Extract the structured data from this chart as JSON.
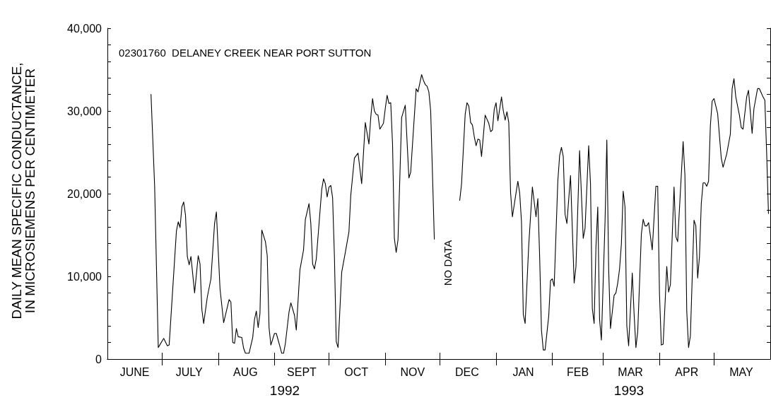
{
  "chart_data": {
    "type": "line",
    "title": "02301760  DELANEY CREEK NEAR PORT SUTTON",
    "ylabel": "DAILY MEAN SPECIFIC CONDUCTANCE,\nIN MICROSIEMENS PER CENTIMETER",
    "xlim": [
      "1992-06-01",
      "1993-06-01"
    ],
    "xticks": [
      {
        "value": "1992-06-16",
        "label": "JUNE"
      },
      {
        "value": "1992-07-01",
        "label": null
      },
      {
        "value": "1992-07-16",
        "label": "JULY"
      },
      {
        "value": "1992-08-01",
        "label": null
      },
      {
        "value": "1992-08-16",
        "label": "AUG"
      },
      {
        "value": "1992-09-01",
        "label": null
      },
      {
        "value": "1992-09-16",
        "label": "SEPT"
      },
      {
        "value": "1992-10-01",
        "label": null
      },
      {
        "value": "1992-10-16",
        "label": "OCT"
      },
      {
        "value": "1992-11-01",
        "label": null
      },
      {
        "value": "1992-11-16",
        "label": "NOV"
      },
      {
        "value": "1992-12-01",
        "label": null
      },
      {
        "value": "1992-12-16",
        "label": "DEC"
      },
      {
        "value": "1993-01-01",
        "label": null
      },
      {
        "value": "1993-01-16",
        "label": "JAN"
      },
      {
        "value": "1993-02-01",
        "label": null
      },
      {
        "value": "1993-02-15",
        "label": "FEB"
      },
      {
        "value": "1993-03-01",
        "label": null
      },
      {
        "value": "1993-03-16",
        "label": "MAR"
      },
      {
        "value": "1993-04-01",
        "label": null
      },
      {
        "value": "1993-04-16",
        "label": "APR"
      },
      {
        "value": "1993-05-01",
        "label": null
      },
      {
        "value": "1993-05-16",
        "label": "MAY"
      }
    ],
    "ylim": [
      0,
      40000
    ],
    "yticks": [
      {
        "value": 0,
        "label": "0"
      },
      {
        "value": 2000,
        "label": null
      },
      {
        "value": 4000,
        "label": null
      },
      {
        "value": 6000,
        "label": null
      },
      {
        "value": 8000,
        "label": null
      },
      {
        "value": 10000,
        "label": "10,000"
      },
      {
        "value": 12000,
        "label": null
      },
      {
        "value": 14000,
        "label": null
      },
      {
        "value": 16000,
        "label": null
      },
      {
        "value": 18000,
        "label": null
      },
      {
        "value": 20000,
        "label": "20,000"
      },
      {
        "value": 22000,
        "label": null
      },
      {
        "value": 24000,
        "label": null
      },
      {
        "value": 26000,
        "label": null
      },
      {
        "value": 28000,
        "label": null
      },
      {
        "value": 30000,
        "label": "30,000"
      },
      {
        "value": 32000,
        "label": null
      },
      {
        "value": 34000,
        "label": null
      },
      {
        "value": 36000,
        "label": null
      },
      {
        "value": 38000,
        "label": null
      },
      {
        "value": 40000,
        "label": "40,000"
      }
    ],
    "annotations": [
      "NO DATA",
      "1992",
      "1993"
    ],
    "series": [
      {
        "color": "#000000",
        "x": [
          "1992-06-25",
          "1992-06-27",
          "1992-06-29",
          "1992-07-02",
          "1992-07-04",
          "1992-07-05",
          "1992-07-09",
          "1992-07-10",
          "1992-07-11",
          "1992-07-12",
          "1992-07-13",
          "1992-07-14",
          "1992-07-15",
          "1992-07-16",
          "1992-07-17",
          "1992-07-19",
          "1992-07-21",
          "1992-07-22",
          "1992-07-23",
          "1992-07-24",
          "1992-07-26",
          "1992-07-28",
          "1992-07-30",
          "1992-07-31",
          "1992-08-02",
          "1992-08-04",
          "1992-08-07",
          "1992-08-08",
          "1992-08-09",
          "1992-08-10",
          "1992-08-11",
          "1992-08-12",
          "1992-08-14",
          "1992-08-15",
          "1992-08-16",
          "1992-08-18",
          "1992-08-20",
          "1992-08-21",
          "1992-08-22",
          "1992-08-23",
          "1992-08-24",
          "1992-08-25",
          "1992-08-27",
          "1992-08-28",
          "1992-08-29",
          "1992-08-30",
          "1992-09-01",
          "1992-09-02",
          "1992-09-04",
          "1992-09-05",
          "1992-09-06",
          "1992-09-07",
          "1992-09-09",
          "1992-09-10",
          "1992-09-12",
          "1992-09-13",
          "1992-09-15",
          "1992-09-17",
          "1992-09-18",
          "1992-09-20",
          "1992-09-21",
          "1992-09-22",
          "1992-09-23",
          "1992-09-24",
          "1992-09-25",
          "1992-09-27",
          "1992-09-28",
          "1992-09-29",
          "1992-09-30",
          "1992-10-01",
          "1992-10-02",
          "1992-10-03",
          "1992-10-04",
          "1992-10-05",
          "1992-10-06",
          "1992-10-08",
          "1992-10-10",
          "1992-10-12",
          "1992-10-13",
          "1992-10-15",
          "1992-10-17",
          "1992-10-19",
          "1992-10-21",
          "1992-10-23",
          "1992-10-24",
          "1992-10-25",
          "1992-10-26",
          "1992-10-27",
          "1992-10-28",
          "1992-10-29",
          "1992-10-31",
          "1992-11-01",
          "1992-11-02",
          "1992-11-03",
          "1992-11-04",
          "1992-11-05",
          "1992-11-06",
          "1992-11-07",
          "1992-11-08",
          "1992-11-10",
          "1992-11-12",
          "1992-11-14",
          "1992-11-15",
          "1992-11-16",
          "1992-11-18",
          "1992-11-19",
          "1992-11-21",
          "1992-11-22",
          "1992-11-23",
          "1992-11-24",
          "1992-11-25",
          "1992-11-26",
          "1992-11-27",
          "1992-11-28",
          "1992-12-05",
          "1992-12-12",
          "1992-12-13",
          "1992-12-15",
          "1992-12-16",
          "1992-12-17",
          "1992-12-18",
          "1992-12-19",
          "1992-12-20",
          "1992-12-21",
          "1992-12-22",
          "1992-12-23",
          "1992-12-24",
          "1992-12-26",
          "1992-12-28",
          "1992-12-29",
          "1992-12-30",
          "1992-12-31",
          "1993-01-01",
          "1993-01-02",
          "1993-01-04",
          "1993-01-05",
          "1993-01-06",
          "1993-01-07",
          "1993-01-08",
          "1993-01-09",
          "1993-01-10",
          "1993-01-12",
          "1993-01-13",
          "1993-01-14",
          "1993-01-15",
          "1993-01-16",
          "1993-01-17",
          "1993-01-19",
          "1993-01-21",
          "1993-01-23",
          "1993-01-24",
          "1993-01-25",
          "1993-01-26",
          "1993-01-27",
          "1993-01-28",
          "1993-01-30",
          "1993-01-31",
          "1993-02-01",
          "1993-02-02",
          "1993-02-04",
          "1993-02-05",
          "1993-02-06",
          "1993-02-07",
          "1993-02-08",
          "1993-02-09",
          "1993-02-11",
          "1993-02-13",
          "1993-02-14",
          "1993-02-16",
          "1993-02-18",
          "1993-02-19",
          "1993-02-21",
          "1993-02-22",
          "1993-02-23",
          "1993-02-24",
          "1993-02-25",
          "1993-02-26",
          "1993-02-27",
          "1993-02-28",
          "1993-03-02",
          "1993-03-03",
          "1993-03-04",
          "1993-03-05",
          "1993-03-07",
          "1993-03-08",
          "1993-03-09",
          "1993-03-10",
          "1993-03-11",
          "1993-03-12",
          "1993-03-13",
          "1993-03-14",
          "1993-03-15",
          "1993-03-17",
          "1993-03-18",
          "1993-03-19",
          "1993-03-20",
          "1993-03-22",
          "1993-03-23",
          "1993-03-24",
          "1993-03-25",
          "1993-03-26",
          "1993-03-28",
          "1993-03-30",
          "1993-03-31",
          "1993-04-01",
          "1993-04-02",
          "1993-04-03",
          "1993-04-05",
          "1993-04-06",
          "1993-04-07",
          "1993-04-09",
          "1993-04-10",
          "1993-04-11",
          "1993-04-14",
          "1993-04-15",
          "1993-04-16",
          "1993-04-17",
          "1993-04-18",
          "1993-04-20",
          "1993-04-21",
          "1993-04-22",
          "1993-04-23",
          "1993-04-24",
          "1993-04-25",
          "1993-04-26",
          "1993-04-27",
          "1993-04-28",
          "1993-04-29",
          "1993-04-30",
          "1993-05-01",
          "1993-05-03",
          "1993-05-05",
          "1993-05-06",
          "1993-05-08",
          "1993-05-10",
          "1993-05-11",
          "1993-05-12",
          "1993-05-13",
          "1993-05-15",
          "1993-05-16",
          "1993-05-17",
          "1993-05-19",
          "1993-05-20",
          "1993-05-22",
          "1993-05-23",
          "1993-05-25",
          "1993-05-26",
          "1993-05-27",
          "1993-05-28",
          "1993-05-29",
          "1993-05-30",
          "1993-05-31"
        ],
        "values": [
          32000,
          20900,
          1400,
          2500,
          1600,
          1700,
          15500,
          16600,
          15900,
          18400,
          19000,
          17400,
          12400,
          11400,
          12400,
          8000,
          12500,
          11500,
          6000,
          4300,
          7500,
          9700,
          16400,
          17800,
          8500,
          4400,
          7200,
          6900,
          2000,
          1900,
          3700,
          2700,
          2600,
          1300,
          700,
          700,
          2600,
          4800,
          5800,
          3800,
          5500,
          15600,
          14200,
          12500,
          3800,
          1700,
          3100,
          3100,
          1500,
          700,
          700,
          1900,
          5700,
          6800,
          5300,
          3500,
          10800,
          13200,
          16900,
          18800,
          16400,
          11500,
          10900,
          12100,
          14900,
          20500,
          21800,
          21200,
          19600,
          20800,
          21000,
          19500,
          12400,
          2100,
          1400,
          10500,
          12900,
          15400,
          19800,
          24300,
          24900,
          21200,
          28600,
          26000,
          29200,
          31500,
          30000,
          29600,
          29500,
          27800,
          28500,
          30300,
          31900,
          30900,
          31000,
          26000,
          14600,
          12900,
          14400,
          29200,
          30700,
          21900,
          22600,
          26000,
          32700,
          32300,
          34400,
          33700,
          33200,
          33000,
          32300,
          30000,
          22300,
          14500,
          null,
          19200,
          21200,
          29600,
          31000,
          30600,
          28600,
          28300,
          26900,
          25800,
          26600,
          26500,
          24500,
          29500,
          28500,
          27500,
          27700,
          30200,
          31000,
          28800,
          31700,
          30000,
          28900,
          29900,
          28600,
          20100,
          17200,
          20100,
          21500,
          20100,
          16600,
          5400,
          4300,
          13800,
          20800,
          17200,
          19400,
          12400,
          3500,
          1100,
          1100,
          5200,
          9500,
          9700,
          8800,
          21500,
          24600,
          25600,
          24500,
          17500,
          16400,
          22200,
          9200,
          11200,
          25200,
          14600,
          15800,
          25800,
          21200,
          6100,
          4300,
          13500,
          18400,
          4800,
          2300,
          16600,
          26500,
          10900,
          3700,
          7700,
          8000,
          9200,
          10900,
          13900,
          20300,
          18400,
          4000,
          1600,
          10400,
          5500,
          1400,
          3300,
          15100,
          16900,
          16100,
          16100,
          16500,
          13200,
          20900,
          20900,
          7800,
          1700,
          1800,
          11200,
          8100,
          9000,
          20800,
          14800,
          14200,
          26300,
          22200,
          5800,
          1400,
          2800,
          16800,
          16100,
          9800,
          12400,
          18800,
          21300,
          21300,
          20900,
          21500,
          28200,
          31200,
          31500,
          29700,
          24300,
          23200,
          24800,
          27200,
          32700,
          33900,
          31700,
          29500,
          28000,
          27800,
          31700,
          32500,
          27300,
          30300,
          32700,
          32700,
          32200,
          31700,
          31300,
          24900,
          17600
        ]
      }
    ]
  }
}
